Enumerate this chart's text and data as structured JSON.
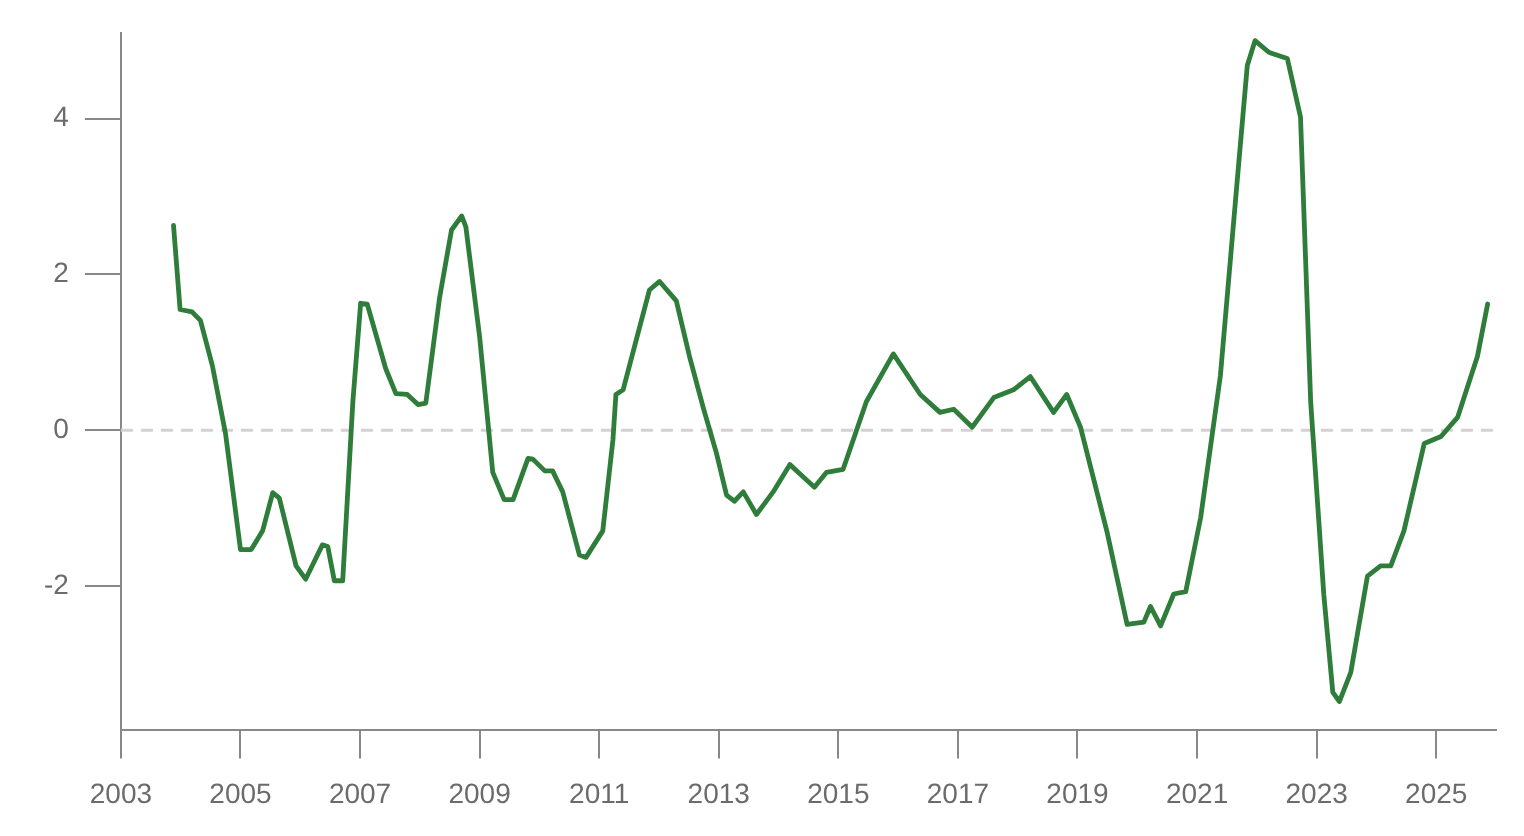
{
  "chart_data": {
    "type": "line",
    "x": [
      2003.88,
      2003.99,
      2004.19,
      2004.33,
      2004.53,
      2004.75,
      2005.0,
      2005.18,
      2005.37,
      2005.54,
      2005.65,
      2005.93,
      2006.09,
      2006.37,
      2006.46,
      2006.57,
      2006.71,
      2006.88,
      2007.01,
      2007.12,
      2007.43,
      2007.6,
      2007.79,
      2007.97,
      2008.1,
      2008.33,
      2008.53,
      2008.7,
      2008.77,
      2009.0,
      2009.22,
      2009.41,
      2009.56,
      2009.81,
      2009.89,
      2010.09,
      2010.22,
      2010.39,
      2010.67,
      2010.78,
      2011.06,
      2011.23,
      2011.28,
      2011.4,
      2011.62,
      2011.84,
      2012.01,
      2012.29,
      2012.51,
      2012.74,
      2012.96,
      2013.13,
      2013.26,
      2013.41,
      2013.63,
      2013.91,
      2014.19,
      2014.36,
      2014.6,
      2014.8,
      2015.08,
      2015.25,
      2015.47,
      2015.92,
      2016.37,
      2016.7,
      2016.93,
      2017.24,
      2017.6,
      2017.93,
      2018.21,
      2018.6,
      2018.82,
      2019.05,
      2019.49,
      2019.83,
      2020.11,
      2020.22,
      2020.39,
      2020.61,
      2020.81,
      2021.06,
      2021.39,
      2021.67,
      2021.84,
      2021.97,
      2022.2,
      2022.51,
      2022.73,
      2022.9,
      2023.12,
      2023.27,
      2023.38,
      2023.57,
      2023.85,
      2024.07,
      2024.24,
      2024.46,
      2024.8,
      2025.08,
      2025.36,
      2025.69,
      2025.86
    ],
    "series": [
      {
        "color": "#2e7d3a",
        "values": [
          2.63,
          1.55,
          1.52,
          1.41,
          0.83,
          -0.04,
          -1.53,
          -1.53,
          -1.29,
          -0.8,
          -0.87,
          -1.74,
          -1.91,
          -1.47,
          -1.49,
          -1.93,
          -1.93,
          0.37,
          1.63,
          1.62,
          0.79,
          0.47,
          0.46,
          0.33,
          0.35,
          1.7,
          2.57,
          2.75,
          2.61,
          1.2,
          -0.54,
          -0.89,
          -0.89,
          -0.36,
          -0.37,
          -0.52,
          -0.52,
          -0.79,
          -1.6,
          -1.63,
          -1.29,
          -0.12,
          0.46,
          0.52,
          1.16,
          1.8,
          1.91,
          1.66,
          0.95,
          0.29,
          -0.29,
          -0.83,
          -0.91,
          -0.79,
          -1.08,
          -0.79,
          -0.44,
          -0.56,
          -0.73,
          -0.54,
          -0.5,
          -0.12,
          0.37,
          0.98,
          0.46,
          0.23,
          0.27,
          0.04,
          0.42,
          0.52,
          0.69,
          0.23,
          0.46,
          0.04,
          -1.29,
          -2.49,
          -2.46,
          -2.26,
          -2.51,
          -2.1,
          -2.07,
          -1.12,
          0.7,
          3.19,
          4.68,
          5.0,
          4.85,
          4.77,
          4.02,
          0.37,
          -2.11,
          -3.36,
          -3.48,
          -3.11,
          -1.87,
          -1.74,
          -1.74,
          -1.29,
          -0.17,
          -0.08,
          0.17,
          0.95,
          1.62
        ]
      }
    ],
    "xlim": [
      2003,
      2026
    ],
    "xticks": [
      2003,
      2005,
      2007,
      2009,
      2011,
      2013,
      2015,
      2017,
      2019,
      2021,
      2023,
      2025
    ],
    "ylim": [
      -3.85,
      5.1
    ],
    "yticks": [
      -2,
      0,
      2,
      4
    ],
    "ref_lines": [
      {
        "axis": "y",
        "value": 0,
        "color": "#d8cfd3",
        "line_style": "dashed"
      }
    ],
    "marker": "none",
    "line_style": "solid"
  }
}
